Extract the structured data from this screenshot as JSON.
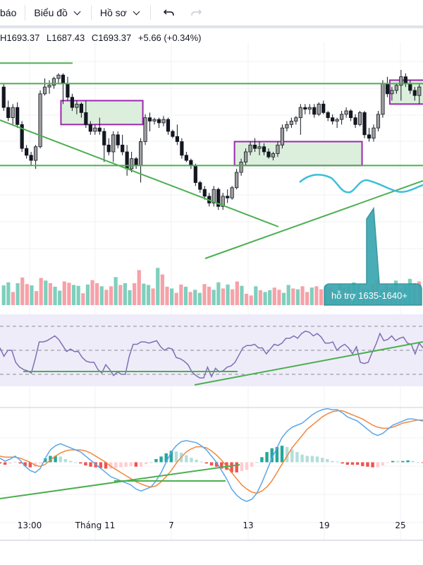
{
  "toolbar": {
    "partial_left_label": "báo",
    "chart_menu_label": "Biểu đồ",
    "profile_menu_label": "Hồ sơ",
    "undo_icon": "undo-icon",
    "redo_icon": "redo-icon"
  },
  "legend": {
    "high": "H1693.37",
    "low": "L1687.43",
    "close": "C1693.37",
    "change": "+5.66 (+0.34%)"
  },
  "colors": {
    "up_volume": "#7fcfbd",
    "down_volume": "#f7a1a8",
    "trendline": "#4caf50",
    "zone_border": "#9c27b0",
    "zone_fill": "#dcefdc",
    "rsi_line": "#7e6fb5",
    "rsi_band": "#efecf9",
    "macd_line": "#5aa6e8",
    "signal_line": "#f0883e",
    "hist_up_strong": "#26a69a",
    "hist_up_weak": "#b2dfdb",
    "hist_down_strong": "#ef5350",
    "hist_down_weak": "#ffcdd2",
    "callout": "#3aa7b0",
    "ma_line": "#3bbfd8"
  },
  "chart_data": {
    "type": "candlestick",
    "title": "",
    "x_ticks": [
      "13:00",
      "Tháng 11",
      "7",
      "13",
      "19",
      "25"
    ],
    "price_ylim": [
      1600,
      1720
    ],
    "candles": [
      [
        1698,
        1700,
        1684,
        1686
      ],
      [
        1686,
        1690,
        1678,
        1680
      ],
      [
        1680,
        1688,
        1676,
        1686
      ],
      [
        1686,
        1689,
        1674,
        1676
      ],
      [
        1676,
        1678,
        1660,
        1662
      ],
      [
        1662,
        1664,
        1656,
        1658
      ],
      [
        1658,
        1660,
        1652,
        1655
      ],
      [
        1655,
        1664,
        1650,
        1663
      ],
      [
        1663,
        1696,
        1662,
        1694
      ],
      [
        1694,
        1703,
        1693,
        1698
      ],
      [
        1698,
        1702,
        1694,
        1699
      ],
      [
        1699,
        1704,
        1697,
        1703
      ],
      [
        1703,
        1706,
        1700,
        1705
      ],
      [
        1705,
        1706,
        1688,
        1700
      ],
      [
        1700,
        1704,
        1690,
        1692
      ],
      [
        1692,
        1694,
        1684,
        1686
      ],
      [
        1686,
        1690,
        1682,
        1688
      ],
      [
        1688,
        1689,
        1680,
        1683
      ],
      [
        1683,
        1690,
        1674,
        1676
      ],
      [
        1676,
        1678,
        1670,
        1672
      ],
      [
        1672,
        1676,
        1670,
        1674
      ],
      [
        1674,
        1680,
        1670,
        1672
      ],
      [
        1672,
        1674,
        1654,
        1664
      ],
      [
        1664,
        1668,
        1658,
        1660
      ],
      [
        1660,
        1672,
        1654,
        1670
      ],
      [
        1670,
        1672,
        1662,
        1664
      ],
      [
        1664,
        1670,
        1658,
        1660
      ],
      [
        1660,
        1664,
        1646,
        1650
      ],
      [
        1650,
        1660,
        1648,
        1656
      ],
      [
        1656,
        1657,
        1650,
        1652
      ],
      [
        1652,
        1668,
        1642,
        1666
      ],
      [
        1666,
        1682,
        1664,
        1680
      ],
      [
        1680,
        1683,
        1672,
        1678
      ],
      [
        1678,
        1680,
        1676,
        1679
      ],
      [
        1679,
        1680,
        1674,
        1677
      ],
      [
        1677,
        1681,
        1675,
        1679
      ],
      [
        1679,
        1680,
        1670,
        1672
      ],
      [
        1672,
        1673,
        1668,
        1669
      ],
      [
        1669,
        1676,
        1664,
        1666
      ],
      [
        1666,
        1668,
        1656,
        1658
      ],
      [
        1658,
        1660,
        1654,
        1655
      ],
      [
        1655,
        1656,
        1650,
        1652
      ],
      [
        1652,
        1653,
        1640,
        1642
      ],
      [
        1642,
        1643,
        1636,
        1638
      ],
      [
        1638,
        1640,
        1632,
        1634
      ],
      [
        1634,
        1636,
        1628,
        1630
      ],
      [
        1630,
        1640,
        1628,
        1638
      ],
      [
        1638,
        1639,
        1626,
        1628
      ],
      [
        1628,
        1636,
        1626,
        1634
      ],
      [
        1634,
        1638,
        1630,
        1633
      ],
      [
        1633,
        1640,
        1632,
        1639
      ],
      [
        1639,
        1650,
        1638,
        1648
      ],
      [
        1648,
        1656,
        1646,
        1654
      ],
      [
        1654,
        1662,
        1652,
        1660
      ],
      [
        1660,
        1666,
        1658,
        1664
      ],
      [
        1664,
        1668,
        1660,
        1662
      ],
      [
        1662,
        1666,
        1658,
        1663
      ],
      [
        1663,
        1665,
        1658,
        1660
      ],
      [
        1660,
        1662,
        1656,
        1657
      ],
      [
        1657,
        1660,
        1655,
        1659
      ],
      [
        1659,
        1666,
        1657,
        1664
      ],
      [
        1664,
        1676,
        1662,
        1674
      ],
      [
        1674,
        1678,
        1672,
        1676
      ],
      [
        1676,
        1680,
        1674,
        1678
      ],
      [
        1678,
        1681,
        1676,
        1680
      ],
      [
        1680,
        1688,
        1670,
        1686
      ],
      [
        1686,
        1688,
        1682,
        1685
      ],
      [
        1685,
        1688,
        1682,
        1686
      ],
      [
        1686,
        1688,
        1680,
        1682
      ],
      [
        1682,
        1689,
        1681,
        1688
      ],
      [
        1688,
        1690,
        1682,
        1683
      ],
      [
        1683,
        1684,
        1678,
        1680
      ],
      [
        1680,
        1682,
        1676,
        1678
      ],
      [
        1678,
        1680,
        1674,
        1679
      ],
      [
        1679,
        1684,
        1676,
        1682
      ],
      [
        1682,
        1686,
        1680,
        1684
      ],
      [
        1684,
        1685,
        1678,
        1680
      ],
      [
        1680,
        1682,
        1674,
        1676
      ],
      [
        1676,
        1684,
        1675,
        1683
      ],
      [
        1683,
        1684,
        1668,
        1670
      ],
      [
        1670,
        1674,
        1666,
        1668
      ],
      [
        1668,
        1676,
        1666,
        1674
      ],
      [
        1674,
        1684,
        1672,
        1682
      ],
      [
        1682,
        1702,
        1680,
        1700
      ],
      [
        1700,
        1704,
        1692,
        1694
      ],
      [
        1694,
        1698,
        1690,
        1696
      ],
      [
        1696,
        1700,
        1694,
        1699
      ],
      [
        1699,
        1708,
        1690,
        1704
      ],
      [
        1704,
        1706,
        1698,
        1700
      ],
      [
        1700,
        1702,
        1694,
        1696
      ],
      [
        1696,
        1698,
        1690,
        1693
      ],
      [
        1693,
        1700,
        1688,
        1698
      ]
    ],
    "support_resistance": {
      "upper_horizontal": 1700,
      "lower_horizontal": 1652,
      "top_left_horizontal": 1712
    },
    "annotation": "hỗ trợ 1635-1640+",
    "volume_series": [
      45,
      52,
      30,
      50,
      63,
      48,
      45,
      32,
      62,
      56,
      50,
      42,
      33,
      54,
      51,
      46,
      44,
      27,
      47,
      57,
      50,
      43,
      35,
      43,
      64,
      46,
      50,
      34,
      50,
      80,
      49,
      46,
      38,
      85,
      70,
      42,
      38,
      28,
      47,
      42,
      30,
      35,
      28,
      48,
      42,
      35,
      52,
      38,
      47,
      36,
      54,
      44,
      26,
      22,
      43,
      34,
      30,
      34,
      40,
      35,
      28,
      46,
      38,
      36,
      43,
      30,
      40,
      43,
      36,
      44,
      40,
      34,
      48,
      40,
      44,
      52,
      46,
      38,
      36,
      48,
      58,
      36,
      44,
      40,
      56,
      38,
      44,
      60,
      50,
      54
    ],
    "rsi_ylim": [
      20,
      80
    ],
    "rsi_levels": [
      70,
      50,
      30
    ],
    "rsi_values": [
      52,
      45,
      50,
      50,
      40,
      36,
      34,
      33,
      31,
      43,
      57,
      57,
      58,
      60,
      62,
      59,
      54,
      49,
      51,
      49,
      49,
      44,
      41,
      40,
      40,
      34,
      31,
      38,
      34,
      29,
      32,
      30,
      30,
      45,
      55,
      55,
      57,
      57,
      56,
      57,
      58,
      53,
      50,
      52,
      51,
      44,
      43,
      41,
      38,
      32,
      29,
      27,
      27,
      36,
      28,
      35,
      32,
      33,
      36,
      37,
      40,
      46,
      52,
      54,
      54,
      55,
      52,
      52,
      47,
      51,
      55,
      54,
      56,
      60,
      60,
      62,
      60,
      64,
      66,
      65,
      62,
      64,
      61,
      56,
      56,
      57,
      50,
      53,
      55,
      52,
      47,
      53,
      40,
      39,
      40,
      48,
      55,
      64,
      58,
      59,
      62,
      58,
      60,
      61,
      56,
      55,
      47,
      56,
      52
    ],
    "macd_values": [
      0.4,
      0.1,
      0.3,
      0.6,
      0.2,
      -0.4,
      -0.8,
      -1.0,
      -0.6,
      0.4,
      1.2,
      1.6,
      1.8,
      1.6,
      1.4,
      1.2,
      1.0,
      0.6,
      0.2,
      -0.2,
      -0.6,
      -1.0,
      -1.4,
      -1.6,
      -1.8,
      -2.0,
      -2.2,
      -2.6,
      -2.8,
      -2.6,
      -2.4,
      -1.8,
      -1.0,
      0.0,
      1.0,
      1.6,
      2.0,
      2.1,
      2.0,
      1.9,
      1.6,
      1.2,
      0.6,
      0.0,
      -0.8,
      -1.6,
      -2.6,
      -3.2,
      -3.6,
      -3.8,
      -3.6,
      -3.0,
      -2.0,
      -0.8,
      0.4,
      1.4,
      2.4,
      3.0,
      3.4,
      3.6,
      3.8,
      4.2,
      4.6,
      4.9,
      5.1,
      5.2,
      5.1,
      5.1,
      4.8,
      4.4,
      4.2,
      4.0,
      3.6,
      3.2,
      2.8,
      2.6,
      2.8,
      3.2,
      3.6,
      3.8,
      4.0,
      4.2,
      4.2,
      4.1,
      4.0
    ],
    "signal_values": [
      0.6,
      0.5,
      0.5,
      0.5,
      0.4,
      0.2,
      0.0,
      -0.3,
      -0.4,
      -0.2,
      0.2,
      0.6,
      0.9,
      1.1,
      1.2,
      1.2,
      1.2,
      1.1,
      0.9,
      0.6,
      0.3,
      0.0,
      -0.4,
      -0.7,
      -1.0,
      -1.3,
      -1.6,
      -1.9,
      -2.1,
      -2.3,
      -2.4,
      -2.3,
      -1.9,
      -1.4,
      -0.8,
      -0.1,
      0.5,
      1.0,
      1.3,
      1.5,
      1.5,
      1.4,
      1.1,
      0.7,
      0.2,
      -0.4,
      -1.0,
      -1.6,
      -2.2,
      -2.6,
      -2.9,
      -3.0,
      -2.8,
      -2.4,
      -1.8,
      -1.0,
      -0.2,
      0.6,
      1.4,
      2.0,
      2.6,
      3.2,
      3.6,
      4.0,
      4.4,
      4.7,
      4.9,
      5.0,
      5.0,
      4.8,
      4.6,
      4.4,
      4.2,
      3.9,
      3.6,
      3.4,
      3.3,
      3.3,
      3.4,
      3.6,
      3.8,
      3.9,
      4.0,
      4.1,
      4.1
    ],
    "macd_ylim": [
      -6,
      6
    ]
  }
}
